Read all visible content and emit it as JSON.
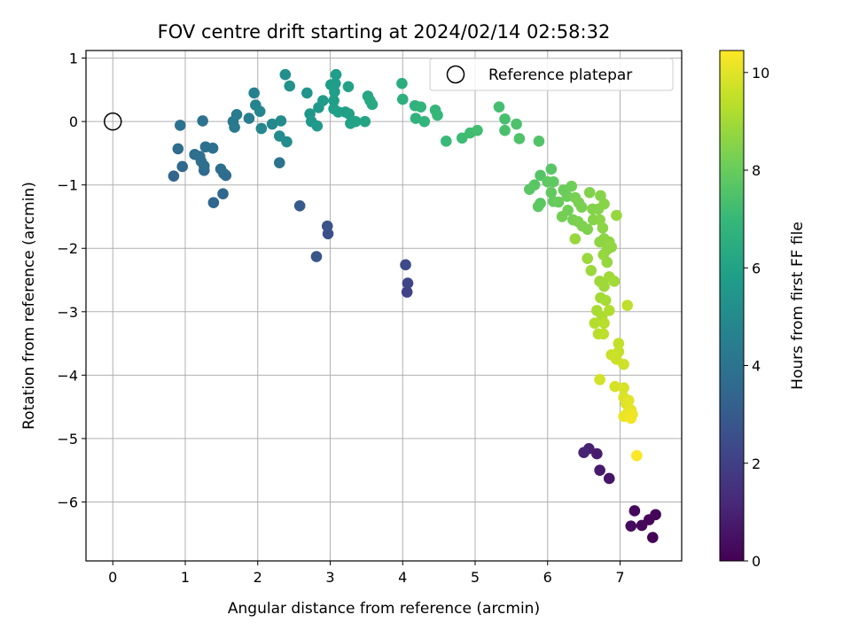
{
  "chart_data": {
    "type": "scatter",
    "title": "FOV centre drift starting at 2024/02/14 02:58:32",
    "xlabel": "Angular distance from reference (arcmin)",
    "ylabel": "Rotation from reference (arcmin)",
    "xlim": [
      -0.37,
      7.85
    ],
    "ylim": [
      -6.93,
      1.12
    ],
    "xticks": [
      0,
      1,
      2,
      3,
      4,
      5,
      6,
      7
    ],
    "yticks": [
      1,
      0,
      -1,
      -2,
      -3,
      -4,
      -5,
      -6
    ],
    "grid": true,
    "colormap": "viridis",
    "colorbar": {
      "label": "Hours from first FF file",
      "range": [
        0,
        10.45
      ],
      "ticks": [
        0,
        2,
        4,
        6,
        8,
        10
      ]
    },
    "legend": {
      "position": "top-right",
      "entry": "Reference platepar"
    },
    "reference_point": {
      "x": 0,
      "y": 0
    },
    "points": [
      [
        7.45,
        -6.56,
        0.05
      ],
      [
        7.49,
        -6.2,
        0.1
      ],
      [
        7.4,
        -6.28,
        0.15
      ],
      [
        7.3,
        -6.37,
        0.2
      ],
      [
        7.2,
        -6.14,
        0.25
      ],
      [
        7.15,
        -6.38,
        0.3
      ],
      [
        6.85,
        -5.63,
        0.6
      ],
      [
        6.72,
        -5.5,
        0.7
      ],
      [
        6.68,
        -5.24,
        0.8
      ],
      [
        6.57,
        -5.16,
        0.95
      ],
      [
        6.5,
        -5.22,
        1.05
      ],
      [
        4.06,
        -2.69,
        2.1
      ],
      [
        4.07,
        -2.55,
        2.2
      ],
      [
        4.04,
        -2.26,
        2.35
      ],
      [
        2.97,
        -1.77,
        2.6
      ],
      [
        2.96,
        -1.65,
        2.7
      ],
      [
        2.81,
        -2.13,
        2.8
      ],
      [
        2.58,
        -1.33,
        2.95
      ],
      [
        0.84,
        -0.86,
        3.4
      ],
      [
        1.39,
        -1.28,
        3.45
      ],
      [
        1.52,
        -1.14,
        3.5
      ],
      [
        0.96,
        -0.71,
        3.55
      ],
      [
        1.26,
        -0.77,
        3.6
      ],
      [
        0.9,
        -0.43,
        3.65
      ],
      [
        1.56,
        -0.85,
        3.7
      ],
      [
        1.53,
        -0.82,
        3.72
      ],
      [
        1.26,
        -0.7,
        3.75
      ],
      [
        1.49,
        -0.75,
        3.78
      ],
      [
        1.13,
        -0.52,
        3.8
      ],
      [
        1.2,
        -0.55,
        3.82
      ],
      [
        1.22,
        -0.63,
        3.85
      ],
      [
        1.38,
        -0.42,
        3.88
      ],
      [
        1.28,
        -0.4,
        3.9
      ],
      [
        0.93,
        -0.06,
        3.92
      ],
      [
        1.24,
        0.01,
        3.95
      ],
      [
        2.3,
        -0.65,
        3.98
      ],
      [
        1.66,
        0.0,
        4.2
      ],
      [
        1.68,
        -0.09,
        4.3
      ],
      [
        1.71,
        0.11,
        4.35
      ],
      [
        1.88,
        0.05,
        4.4
      ],
      [
        1.95,
        0.45,
        4.6
      ],
      [
        1.97,
        0.26,
        4.7
      ],
      [
        2.03,
        0.16,
        4.8
      ],
      [
        2.05,
        -0.11,
        4.85
      ],
      [
        2.2,
        -0.04,
        4.9
      ],
      [
        2.32,
        0.01,
        5.0
      ],
      [
        2.3,
        -0.23,
        5.05
      ],
      [
        2.4,
        -0.32,
        5.1
      ],
      [
        2.38,
        0.74,
        5.2
      ],
      [
        2.44,
        0.56,
        5.3
      ],
      [
        2.68,
        0.45,
        5.4
      ],
      [
        2.72,
        0.12,
        5.5
      ],
      [
        2.74,
        0.0,
        5.55
      ],
      [
        2.84,
        0.22,
        5.6
      ],
      [
        2.82,
        -0.07,
        5.65
      ],
      [
        2.9,
        0.33,
        5.7
      ],
      [
        3.01,
        0.58,
        5.75
      ],
      [
        3.08,
        0.74,
        5.8
      ],
      [
        3.07,
        0.6,
        5.82
      ],
      [
        3.06,
        0.47,
        5.84
      ],
      [
        3.05,
        0.33,
        5.86
      ],
      [
        3.05,
        0.2,
        5.88
      ],
      [
        3.11,
        0.15,
        5.9
      ],
      [
        3.21,
        0.15,
        5.92
      ],
      [
        3.25,
        0.55,
        5.94
      ],
      [
        3.26,
        0.12,
        5.96
      ],
      [
        3.28,
        -0.03,
        5.98
      ],
      [
        3.35,
        0.0,
        6.0
      ],
      [
        3.48,
        0.0,
        6.1
      ],
      [
        3.52,
        0.4,
        6.2
      ],
      [
        3.55,
        0.33,
        6.25
      ],
      [
        3.58,
        0.27,
        6.3
      ],
      [
        3.99,
        0.6,
        6.5
      ],
      [
        4.0,
        0.35,
        6.6
      ],
      [
        4.17,
        0.25,
        6.7
      ],
      [
        4.18,
        0.05,
        6.75
      ],
      [
        4.25,
        0.23,
        6.8
      ],
      [
        4.3,
        0.0,
        6.85
      ],
      [
        4.45,
        0.18,
        6.9
      ],
      [
        4.48,
        0.1,
        6.95
      ],
      [
        4.6,
        -0.31,
        7.05
      ],
      [
        4.82,
        -0.26,
        7.15
      ],
      [
        4.93,
        -0.18,
        7.2
      ],
      [
        5.03,
        -0.14,
        7.25
      ],
      [
        5.33,
        0.23,
        7.3
      ],
      [
        5.41,
        0.04,
        7.35
      ],
      [
        5.41,
        -0.14,
        7.4
      ],
      [
        5.57,
        -0.04,
        7.45
      ],
      [
        5.61,
        -0.27,
        7.5
      ],
      [
        5.88,
        -0.31,
        7.55
      ],
      [
        5.9,
        -0.85,
        7.6
      ],
      [
        6.05,
        -0.75,
        7.65
      ],
      [
        5.82,
        -1.0,
        7.7
      ],
      [
        5.75,
        -1.07,
        7.72
      ],
      [
        5.9,
        -1.29,
        7.75
      ],
      [
        5.87,
        -1.34,
        7.78
      ],
      [
        6.0,
        -0.95,
        7.8
      ],
      [
        6.08,
        -0.95,
        7.85
      ],
      [
        6.05,
        -1.12,
        7.9
      ],
      [
        6.08,
        -1.26,
        7.95
      ],
      [
        6.15,
        -1.27,
        8.0
      ],
      [
        6.22,
        -1.08,
        8.05
      ],
      [
        6.27,
        -1.18,
        8.1
      ],
      [
        6.33,
        -1.02,
        8.15
      ],
      [
        6.28,
        -1.4,
        8.2
      ],
      [
        6.2,
        -1.5,
        8.22
      ],
      [
        6.35,
        -1.55,
        8.25
      ],
      [
        6.38,
        -1.2,
        8.28
      ],
      [
        6.43,
        -1.28,
        8.3
      ],
      [
        6.47,
        -1.35,
        8.32
      ],
      [
        6.42,
        -1.58,
        8.35
      ],
      [
        6.48,
        -1.65,
        8.38
      ],
      [
        6.55,
        -1.7,
        8.4
      ],
      [
        6.58,
        -1.12,
        8.42
      ],
      [
        6.62,
        -1.38,
        8.45
      ],
      [
        6.63,
        -1.55,
        8.48
      ],
      [
        6.7,
        -1.38,
        8.5
      ],
      [
        6.73,
        -1.17,
        8.52
      ],
      [
        6.78,
        -1.3,
        8.55
      ],
      [
        6.72,
        -1.55,
        8.58
      ],
      [
        6.76,
        -1.68,
        8.6
      ],
      [
        6.78,
        -1.85,
        8.62
      ],
      [
        6.72,
        -1.9,
        8.65
      ],
      [
        6.82,
        -2.02,
        8.68
      ],
      [
        6.85,
        -1.9,
        8.7
      ],
      [
        6.88,
        -1.98,
        8.72
      ],
      [
        6.77,
        -2.1,
        8.75
      ],
      [
        6.82,
        -2.22,
        8.78
      ],
      [
        6.95,
        -1.48,
        8.8
      ],
      [
        6.38,
        -1.85,
        8.82
      ],
      [
        6.55,
        -2.16,
        8.85
      ],
      [
        6.6,
        -2.35,
        8.88
      ],
      [
        6.72,
        -2.52,
        8.9
      ],
      [
        6.78,
        -2.6,
        8.92
      ],
      [
        6.85,
        -2.45,
        8.95
      ],
      [
        6.92,
        -2.52,
        8.98
      ],
      [
        6.73,
        -2.78,
        9.0
      ],
      [
        6.8,
        -2.82,
        9.05
      ],
      [
        6.68,
        -2.98,
        9.1
      ],
      [
        6.75,
        -3.08,
        9.15
      ],
      [
        6.85,
        -2.98,
        9.2
      ],
      [
        6.65,
        -3.18,
        9.25
      ],
      [
        6.78,
        -3.18,
        9.3
      ],
      [
        6.7,
        -3.35,
        9.35
      ],
      [
        6.77,
        -3.35,
        9.4
      ],
      [
        7.1,
        -2.9,
        9.45
      ],
      [
        6.98,
        -3.5,
        9.5
      ],
      [
        6.98,
        -3.63,
        9.55
      ],
      [
        6.92,
        -3.7,
        9.6
      ],
      [
        6.88,
        -3.68,
        9.62
      ],
      [
        6.95,
        -3.75,
        9.65
      ],
      [
        7.05,
        -3.83,
        9.7
      ],
      [
        6.72,
        -4.07,
        9.75
      ],
      [
        6.93,
        -4.18,
        9.8
      ],
      [
        7.05,
        -4.2,
        9.85
      ],
      [
        7.05,
        -4.35,
        9.9
      ],
      [
        7.08,
        -4.45,
        9.95
      ],
      [
        7.12,
        -4.4,
        10.0
      ],
      [
        7.15,
        -4.55,
        10.05
      ],
      [
        7.1,
        -4.6,
        10.1
      ],
      [
        7.05,
        -4.65,
        10.15
      ],
      [
        7.17,
        -4.62,
        10.2
      ],
      [
        7.15,
        -4.68,
        10.25
      ],
      [
        7.23,
        -5.27,
        10.4
      ]
    ]
  }
}
